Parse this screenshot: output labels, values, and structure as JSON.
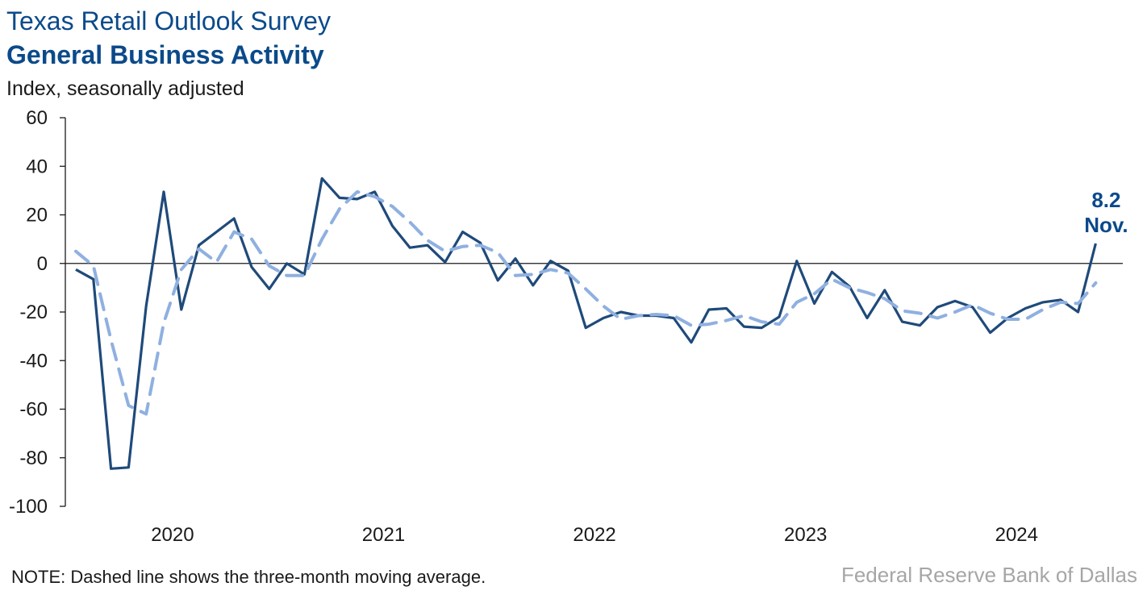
{
  "title": "Texas Retail Outlook Survey",
  "subtitle": "General Business Activity",
  "units_label": "Index, seasonally adjusted",
  "note": "NOTE: Dashed line shows the three-month moving average.",
  "source": "Federal Reserve Bank of Dallas",
  "chart_data": {
    "type": "line",
    "title": "General Business Activity",
    "ylabel": "Index, seasonally adjusted",
    "ylim": [
      -100,
      60
    ],
    "yticks": [
      60,
      40,
      20,
      0,
      -20,
      -40,
      -60,
      -80,
      -100
    ],
    "x_start": "2020-01",
    "x_end": "2024-11",
    "xtick_labels": [
      "2020",
      "2021",
      "2022",
      "2023",
      "2024"
    ],
    "colors": {
      "solid": "#1f4a7a",
      "dashed": "#8fb0e0",
      "annotation": "#0b4a8a"
    },
    "series": [
      {
        "style": "solid",
        "values": [
          -2.5,
          -6.5,
          -84.5,
          -84,
          -17.5,
          29.5,
          -19,
          7.5,
          13,
          18.5,
          -1.5,
          -10.5,
          0,
          -4.5,
          35,
          27,
          26.5,
          29.5,
          15.5,
          6.5,
          7.5,
          0.5,
          13,
          8.5,
          -7,
          2,
          -9,
          1,
          -3,
          -26.5,
          -22.5,
          -20,
          -21.5,
          -21.5,
          -22.5,
          -32.5,
          -19,
          -18.5,
          -26,
          -26.5,
          -22,
          1,
          -16.5,
          -3.5,
          -9.5,
          -22.5,
          -11,
          -24,
          -25.5,
          -18,
          -15.5,
          -18,
          -28.5,
          -22.5,
          -18.5,
          -16,
          -15,
          -20,
          8.2
        ]
      },
      {
        "style": "dashed",
        "values": [
          5,
          -1,
          -31.5,
          -58.5,
          -62,
          -24.5,
          -2.5,
          6,
          0.5,
          13,
          10,
          -1,
          -5,
          -5,
          10,
          22.5,
          29.5,
          27.5,
          23.5,
          17,
          9.5,
          5,
          7,
          7.5,
          4.5,
          -5,
          -4.5,
          -2.5,
          -4,
          -10.5,
          -17.5,
          -23,
          -21.5,
          -21,
          -21.5,
          -25.5,
          -25,
          -23.5,
          -21.5,
          -24,
          -25,
          -16,
          -12.5,
          -6.5,
          -10,
          -12,
          -14.5,
          -19.5,
          -20.5,
          -22.5,
          -20,
          -17,
          -20.5,
          -23,
          -23,
          -19,
          -16,
          -16.5,
          -8
        ]
      }
    ],
    "annotation": {
      "value": "8.2",
      "label": "Nov."
    }
  }
}
